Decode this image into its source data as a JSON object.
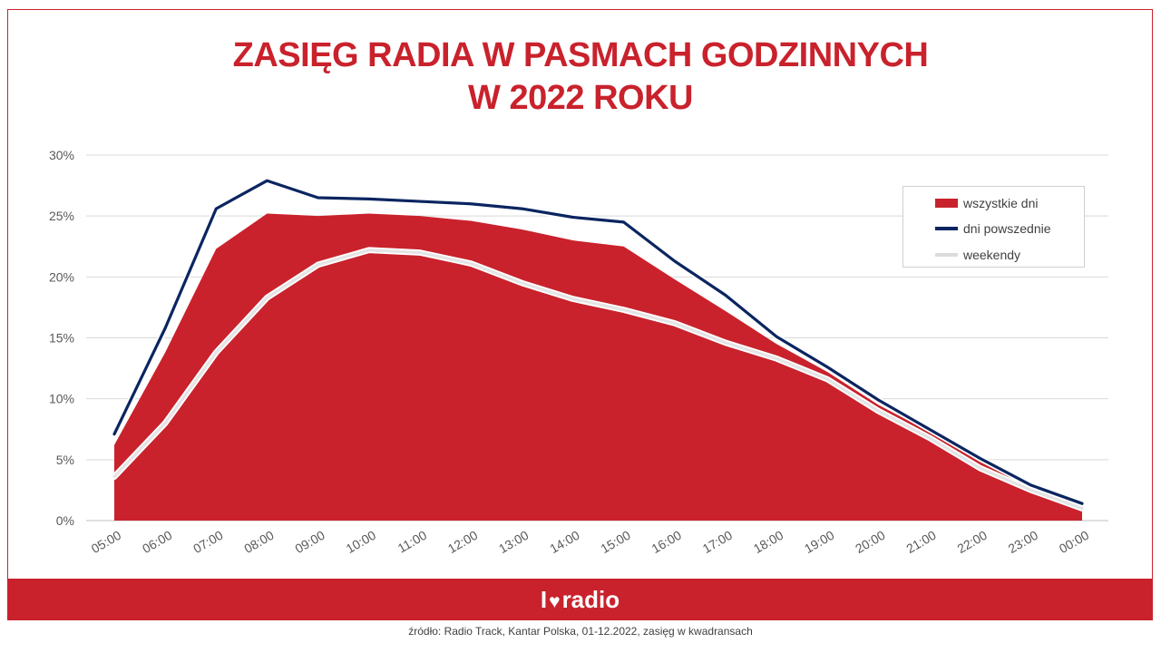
{
  "title": {
    "line1": "ZASIĘG RADIA W PASMACH GODZINNYCH",
    "line2": "W 2022 ROKU"
  },
  "logo": {
    "prefix": "I",
    "heart": "♥",
    "word": "radio"
  },
  "source": "źródło: Radio Track, Kantar Polska, 01-12.2022, zasięg w kwadransach",
  "colors": {
    "accent": "#c9222c",
    "area": "#c9222c",
    "weekday_line": "#0b2560",
    "weekend_line": "#e4e4e4",
    "grid": "#d9d9d9"
  },
  "chart_data": {
    "type": "area",
    "categories": [
      "05:00",
      "06:00",
      "07:00",
      "08:00",
      "09:00",
      "10:00",
      "11:00",
      "12:00",
      "13:00",
      "14:00",
      "15:00",
      "16:00",
      "17:00",
      "18:00",
      "19:00",
      "20:00",
      "21:00",
      "22:00",
      "23:00",
      "00:00"
    ],
    "y_ticks": [
      "0%",
      "5%",
      "10%",
      "15%",
      "20%",
      "25%",
      "30%"
    ],
    "ylim": [
      0,
      30
    ],
    "grid": true,
    "legend_position": "top-right",
    "series": [
      {
        "name": "wszystkie dni",
        "style": "area",
        "values": [
          6.2,
          13.8,
          22.3,
          25.2,
          25.0,
          25.2,
          25.0,
          24.6,
          23.9,
          23.0,
          22.5,
          19.8,
          17.2,
          14.5,
          12.2,
          9.5,
          7.3,
          4.8,
          2.8,
          1.2
        ]
      },
      {
        "name": "dni powszednie",
        "style": "line",
        "values": [
          7.1,
          15.8,
          25.6,
          27.9,
          26.5,
          26.4,
          26.2,
          26.0,
          25.6,
          24.9,
          24.5,
          21.3,
          18.5,
          15.1,
          12.6,
          9.9,
          7.5,
          5.1,
          2.9,
          1.4
        ]
      },
      {
        "name": "weekendy",
        "style": "line",
        "values": [
          3.6,
          8.0,
          13.8,
          18.3,
          21.0,
          22.2,
          22.0,
          21.1,
          19.5,
          18.2,
          17.3,
          16.2,
          14.6,
          13.3,
          11.6,
          9.0,
          6.8,
          4.3,
          2.5,
          1.0
        ]
      }
    ]
  }
}
